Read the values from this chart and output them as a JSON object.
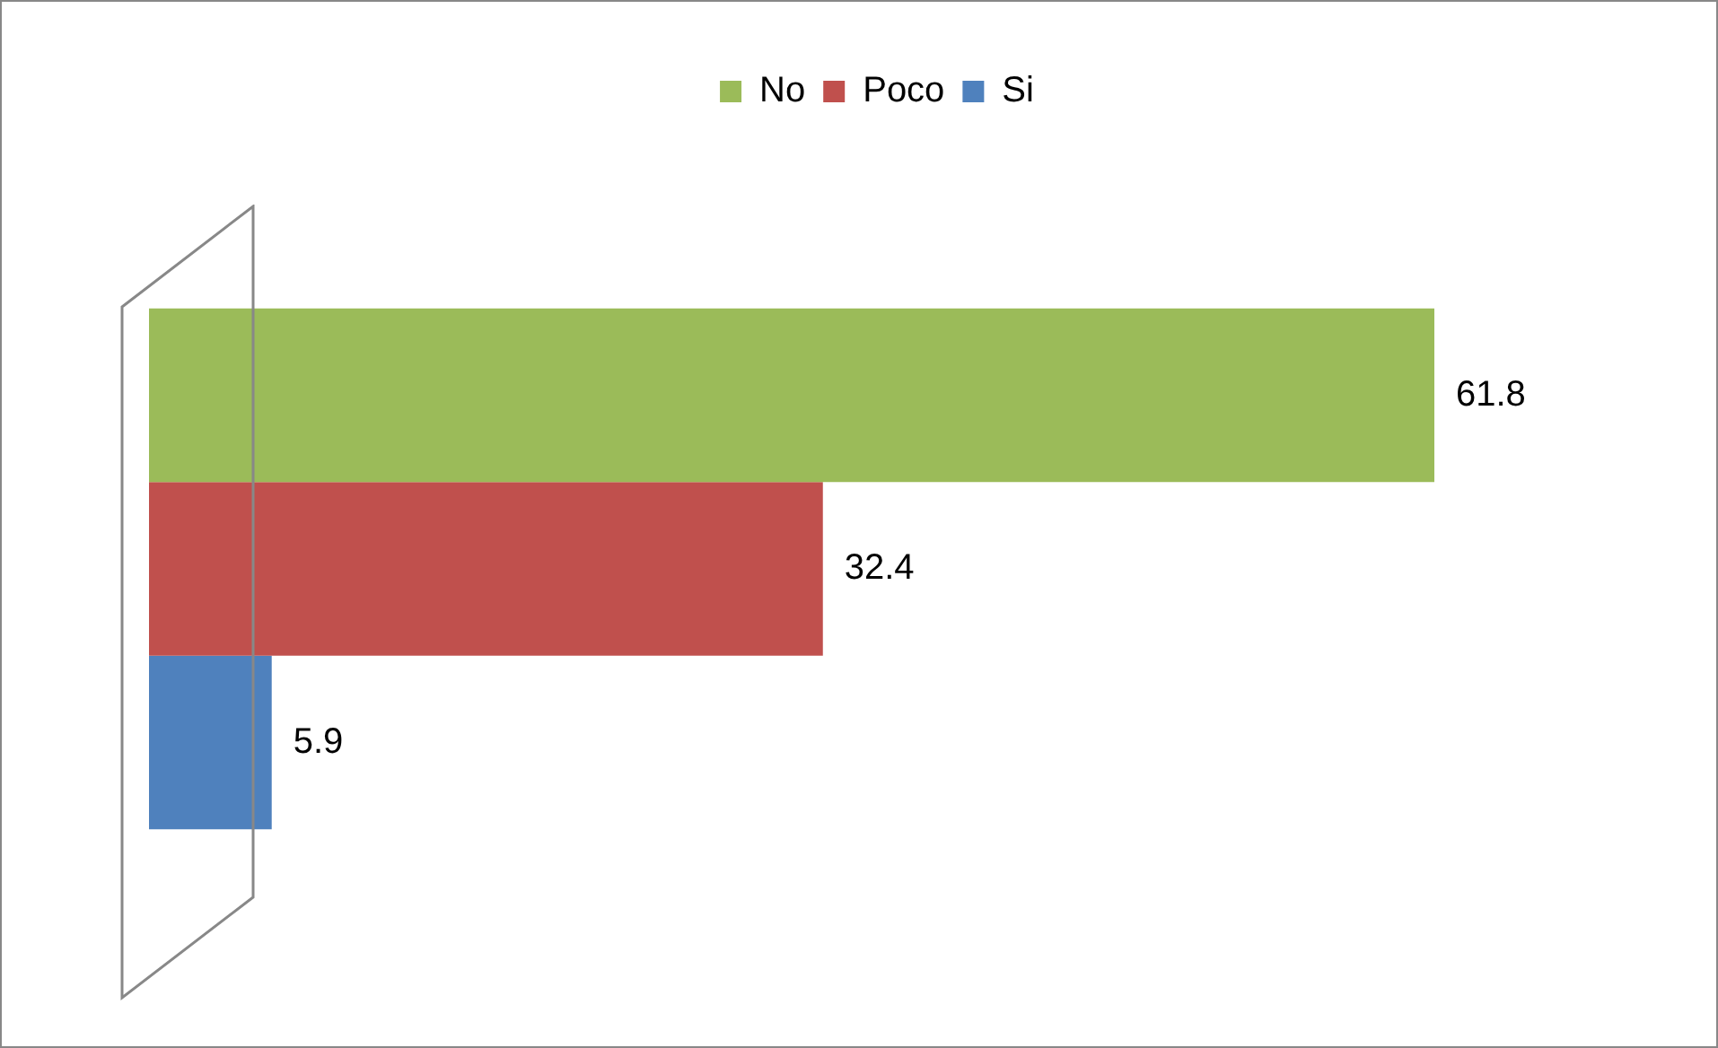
{
  "chart_data": {
    "type": "bar",
    "orientation": "horizontal",
    "categories": [
      null
    ],
    "series": [
      {
        "name": "No",
        "color": "#9bbb59",
        "values": [
          61.8
        ]
      },
      {
        "name": "Poco",
        "color": "#c0504d",
        "values": [
          32.4
        ]
      },
      {
        "name": "Si",
        "color": "#4f81bd",
        "values": [
          5.9
        ]
      }
    ],
    "data_labels": true,
    "legend": "top"
  }
}
